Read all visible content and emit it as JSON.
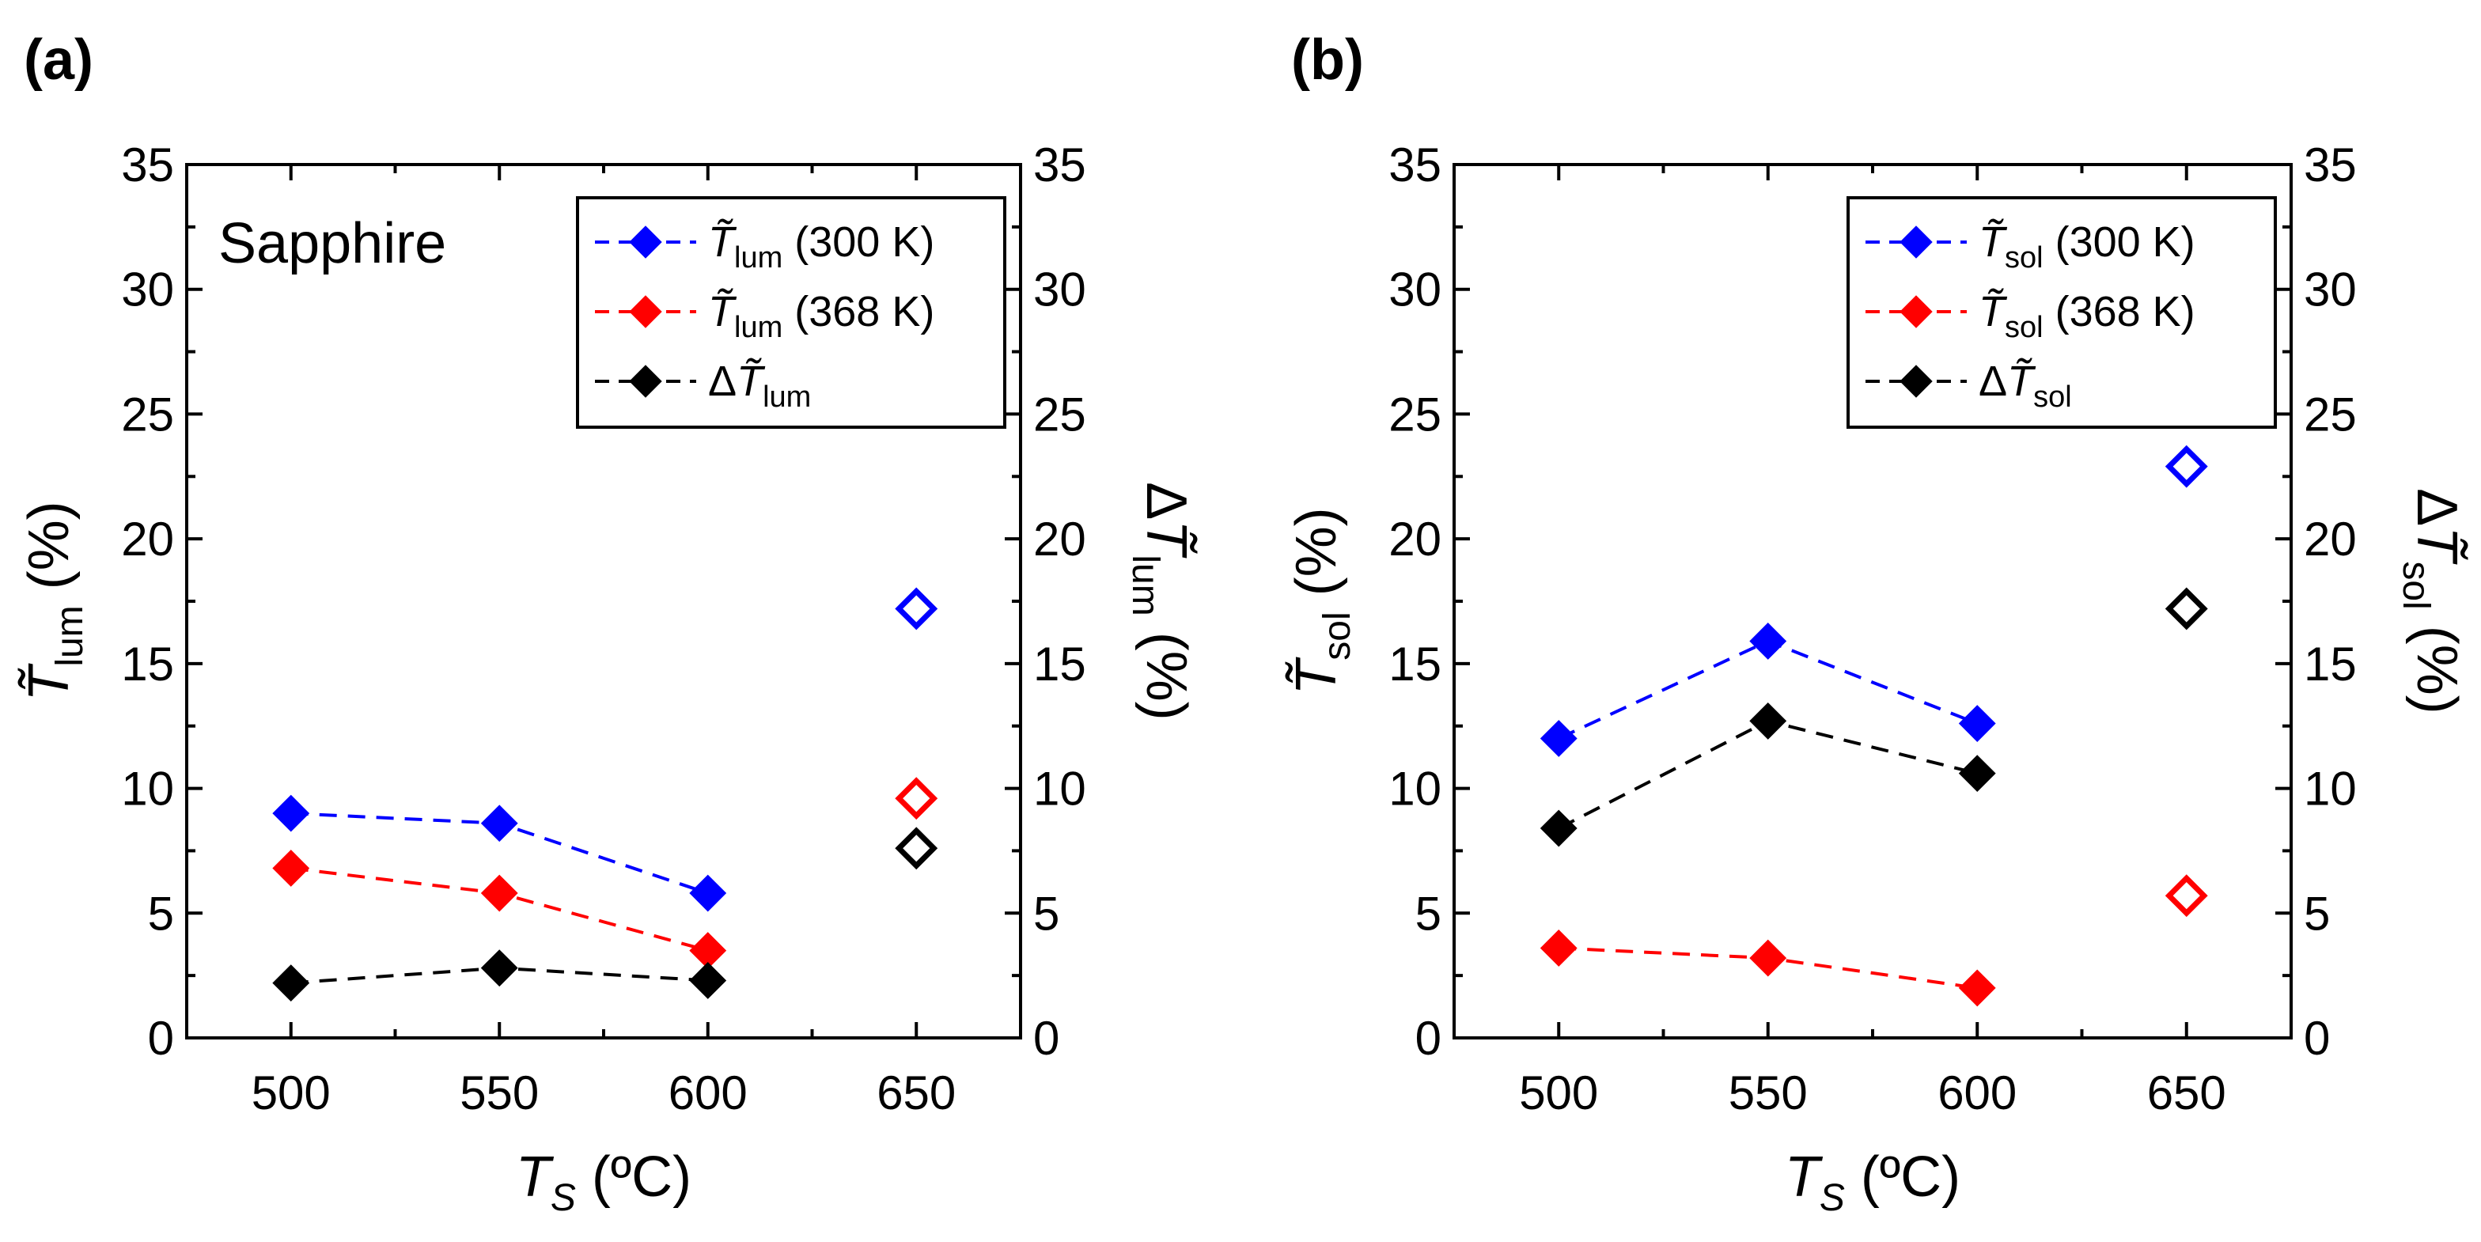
{
  "chart_data": [
    {
      "type": "scatter",
      "panel_label": "(a)",
      "annotation": "Sapphire",
      "xlabel_main": "T",
      "xlabel_sub": "S",
      "xlabel_unit": " (ºC)",
      "ylabel_sym": "T̃",
      "ylabel_sub": "lum",
      "ylabel_unit": " (%)",
      "y2label_prefix": "Δ",
      "y2label_sym": "T̃",
      "y2label_sub": "lum",
      "y2label_unit": " (%)",
      "xlim": [
        475,
        675
      ],
      "ylim": [
        0,
        35
      ],
      "xticks": [
        500,
        550,
        600,
        650
      ],
      "yticks": [
        0,
        5,
        10,
        15,
        20,
        25,
        30,
        35
      ],
      "legend_position": "top-right",
      "series": [
        {
          "name": "T̃lum (300 K)",
          "legend_prefix": "",
          "legend_sym": "T̃",
          "legend_sub": "lum",
          "legend_suffix": " (300 K)",
          "color": "#0000ff",
          "x": [
            500,
            550,
            600
          ],
          "values": [
            9.0,
            8.6,
            5.8
          ],
          "open_x": 650,
          "open_value": 17.2
        },
        {
          "name": "T̃lum (368 K)",
          "legend_prefix": "",
          "legend_sym": "T̃",
          "legend_sub": "lum",
          "legend_suffix": " (368 K)",
          "color": "#ff0000",
          "x": [
            500,
            550,
            600
          ],
          "values": [
            6.8,
            5.8,
            3.5
          ],
          "open_x": 650,
          "open_value": 9.6
        },
        {
          "name": "ΔT̃lum",
          "legend_prefix": "Δ",
          "legend_sym": "T̃",
          "legend_sub": "lum",
          "legend_suffix": "",
          "color": "#000000",
          "x": [
            500,
            550,
            600
          ],
          "values": [
            2.2,
            2.8,
            2.3
          ],
          "open_x": 650,
          "open_value": 7.6
        }
      ]
    },
    {
      "type": "scatter",
      "panel_label": "(b)",
      "annotation": "",
      "xlabel_main": "T",
      "xlabel_sub": "S",
      "xlabel_unit": " (ºC)",
      "ylabel_sym": "T̃",
      "ylabel_sub": "sol",
      "ylabel_unit": " (%)",
      "y2label_prefix": "Δ",
      "y2label_sym": "T̃",
      "y2label_sub": "sol",
      "y2label_unit": " (%)",
      "xlim": [
        475,
        675
      ],
      "ylim": [
        0,
        35
      ],
      "xticks": [
        500,
        550,
        600,
        650
      ],
      "yticks": [
        0,
        5,
        10,
        15,
        20,
        25,
        30,
        35
      ],
      "legend_position": "top-right",
      "series": [
        {
          "name": "T̃sol (300 K)",
          "legend_prefix": "",
          "legend_sym": "T̃",
          "legend_sub": "sol",
          "legend_suffix": " (300 K)",
          "color": "#0000ff",
          "x": [
            500,
            550,
            600
          ],
          "values": [
            12.0,
            15.9,
            12.6
          ],
          "open_x": 650,
          "open_value": 22.9
        },
        {
          "name": "T̃sol (368 K)",
          "legend_prefix": "",
          "legend_sym": "T̃",
          "legend_sub": "sol",
          "legend_suffix": " (368 K)",
          "color": "#ff0000",
          "x": [
            500,
            550,
            600
          ],
          "values": [
            3.6,
            3.2,
            2.0
          ],
          "open_x": 650,
          "open_value": 5.7
        },
        {
          "name": "ΔT̃sol",
          "legend_prefix": "Δ",
          "legend_sym": "T̃",
          "legend_sub": "sol",
          "legend_suffix": "",
          "color": "#000000",
          "x": [
            500,
            550,
            600
          ],
          "values": [
            8.4,
            12.7,
            10.6
          ],
          "open_x": 650,
          "open_value": 17.2
        }
      ]
    }
  ]
}
